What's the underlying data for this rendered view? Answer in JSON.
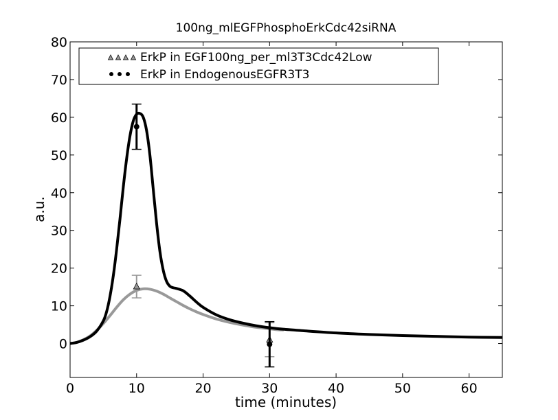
{
  "chart_data": {
    "type": "line",
    "title": "100ng_mlEGFPhosphoErkCdc42siRNA",
    "xlabel": "time (minutes)",
    "ylabel": "a.u.",
    "xlim": [
      0,
      65
    ],
    "ylim": [
      -9,
      80
    ],
    "xticks": [
      0,
      10,
      20,
      30,
      40,
      50,
      60
    ],
    "yticks": [
      0,
      10,
      20,
      30,
      40,
      50,
      60,
      70,
      80
    ],
    "grid": false,
    "legend_position": "top-left",
    "series": [
      {
        "name": "ErkP in EGF100ng_per_ml3T3Cdc42Low",
        "color": "#999999",
        "marker": "triangle",
        "curve": {
          "x": [
            0,
            1,
            2,
            3,
            4,
            5,
            6,
            7,
            8,
            9,
            10,
            11,
            12,
            13,
            14,
            15,
            16,
            17,
            18,
            19,
            20,
            22,
            24,
            26,
            28,
            30,
            31,
            32
          ],
          "y": [
            0,
            0.3,
            1.0,
            2.0,
            3.5,
            5.3,
            7.4,
            9.6,
            11.6,
            13.1,
            14.1,
            14.5,
            14.4,
            13.9,
            13.1,
            12.1,
            11.1,
            10.1,
            9.2,
            8.4,
            7.7,
            6.5,
            5.6,
            4.9,
            4.3,
            3.9,
            3.7,
            3.6
          ]
        },
        "points": {
          "x": [
            10,
            30
          ],
          "y": [
            15.1,
            1.0
          ],
          "err": [
            3.0,
            4.5
          ]
        }
      },
      {
        "name": "ErkP in EndogenousEGFR3T3",
        "color": "#000000",
        "marker": "circle",
        "curve": {
          "x": [
            0,
            1,
            2,
            3,
            4,
            5,
            5.5,
            6,
            6.5,
            7,
            7.5,
            8,
            8.5,
            9,
            9.5,
            10,
            10.5,
            11,
            11.5,
            12,
            12.5,
            13,
            13.5,
            14,
            14.5,
            15,
            15.5,
            16,
            17,
            18,
            19,
            20,
            22,
            24,
            26,
            28,
            30,
            32,
            35,
            40,
            45,
            50,
            55,
            60,
            65
          ],
          "y": [
            0,
            0.3,
            0.9,
            1.8,
            3.3,
            6.0,
            8.5,
            12.5,
            18.0,
            25.0,
            33.0,
            41.5,
            49.0,
            55.0,
            59.0,
            60.8,
            61.0,
            60.0,
            56.5,
            50.0,
            41.0,
            32.0,
            24.5,
            19.5,
            16.5,
            15.2,
            14.8,
            14.6,
            14.0,
            12.6,
            11.0,
            9.6,
            7.6,
            6.3,
            5.4,
            4.7,
            4.2,
            3.8,
            3.4,
            2.8,
            2.4,
            2.1,
            1.9,
            1.7,
            1.6
          ]
        },
        "points": {
          "x": [
            10,
            30
          ],
          "y": [
            57.5,
            -0.2
          ],
          "err": [
            6.0,
            6.0
          ]
        }
      }
    ]
  }
}
